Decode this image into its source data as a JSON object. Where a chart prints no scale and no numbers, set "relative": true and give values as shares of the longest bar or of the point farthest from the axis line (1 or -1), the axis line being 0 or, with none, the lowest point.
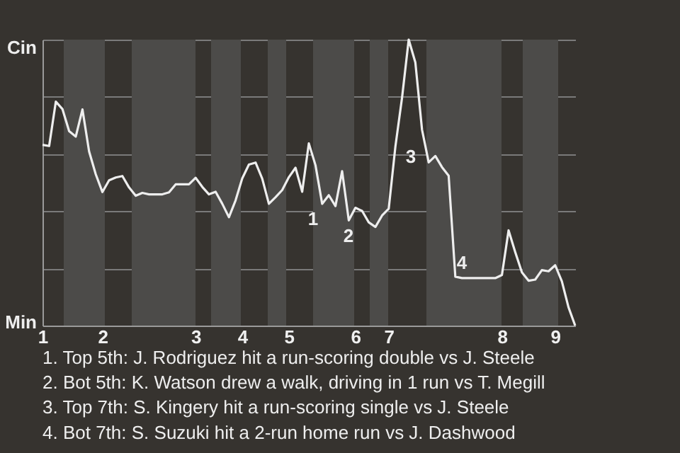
{
  "chart_data": {
    "type": "line",
    "relative": true,
    "categories": [
      "1",
      null,
      null,
      null,
      null,
      null,
      null,
      null,
      null,
      "2",
      null,
      null,
      null,
      null,
      null,
      null,
      null,
      null,
      null,
      null,
      null,
      null,
      null,
      "3",
      null,
      null,
      null,
      null,
      null,
      null,
      "4",
      null,
      null,
      null,
      null,
      null,
      null,
      "5",
      null,
      null,
      null,
      null,
      null,
      null,
      null,
      null,
      null,
      "6",
      null,
      null,
      null,
      null,
      "7",
      null,
      null,
      null,
      null,
      null,
      null,
      null,
      null,
      null,
      null,
      null,
      null,
      null,
      null,
      null,
      null,
      "8",
      null,
      null,
      null,
      null,
      null,
      null,
      null,
      "9",
      null,
      null,
      null
    ],
    "series": [
      {
        "color": "#eeeeee",
        "values": [
          0.632,
          0.628,
          0.783,
          0.757,
          0.68,
          0.661,
          0.756,
          0.609,
          0.529,
          0.467,
          0.508,
          0.518,
          0.523,
          0.483,
          0.454,
          0.464,
          0.459,
          0.459,
          0.459,
          0.466,
          0.494,
          0.494,
          0.494,
          0.517,
          0.485,
          0.459,
          0.468,
          0.426,
          0.379,
          0.438,
          0.515,
          0.563,
          0.57,
          0.514,
          0.426,
          0.449,
          0.474,
          0.519,
          0.552,
          0.468,
          0.637,
          0.561,
          0.426,
          0.456,
          0.418,
          0.54,
          0.368,
          0.412,
          0.401,
          0.361,
          0.345,
          0.385,
          0.409,
          0.626,
          0.797,
          1,
          0.92,
          0.685,
          0.571,
          0.593,
          0.554,
          0.524,
          0.171,
          0.166,
          0.166,
          0.166,
          0.166,
          0.166,
          0.166,
          0.177,
          0.333,
          0.257,
          0.186,
          0.157,
          0.161,
          0.194,
          0.19,
          0.211,
          0.155,
          0.064,
          0
        ]
      }
    ],
    "grid": "y",
    "annotations": [
      "Cin",
      "Min",
      "1",
      "2",
      "3",
      "4",
      "1. Top 5th: J. Rodriguez hit a run-scoring double vs J. Steele",
      "2. Bot 5th: K. Watson drew a walk, driving in 1 run vs T. Megill",
      "3. Top 7th: S. Kingery hit a run-scoring single vs J. Steele",
      "4. Bot 7th: S. Suzuki hit a 2-run home run vs J. Dashwood"
    ]
  }
}
